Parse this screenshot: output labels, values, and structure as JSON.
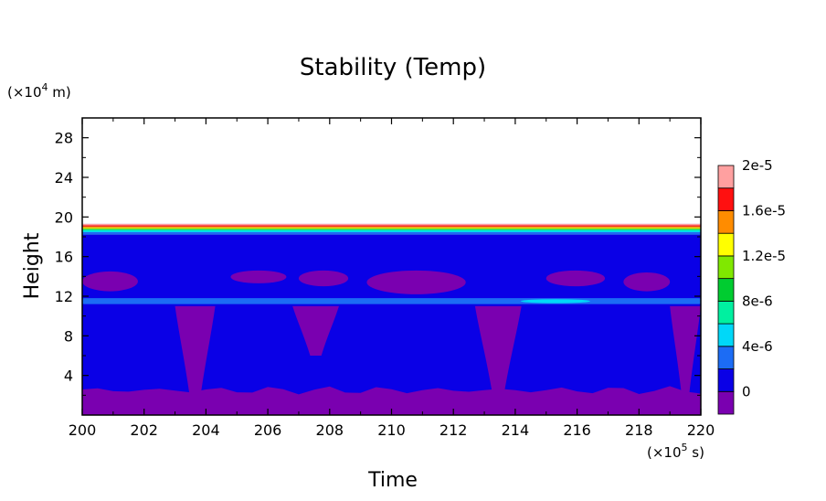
{
  "chart_data": {
    "type": "heatmap",
    "title": "Stability (Temp)",
    "xlabel": "Time",
    "ylabel": "Height",
    "x_unit_note": {
      "prefix": "(×10",
      "exp": "5",
      "suffix": " s)"
    },
    "y_unit_note": {
      "prefix": "(×10",
      "exp": "4",
      "suffix": " m)"
    },
    "xlim": [
      200,
      220
    ],
    "ylim": [
      0,
      30
    ],
    "x_ticks": [
      "200",
      "202",
      "204",
      "206",
      "208",
      "210",
      "212",
      "214",
      "216",
      "218",
      "220"
    ],
    "y_ticks": [
      "4",
      "8",
      "12",
      "16",
      "20",
      "24",
      "28"
    ],
    "grid": false,
    "colorbar": {
      "placement": "right",
      "levels": [
        "0",
        "4e-6",
        "8e-6",
        "1.2e-5",
        "1.6e-5",
        "2e-5"
      ],
      "colors": [
        "#7a00b0",
        "#0a00e6",
        "#1c6cf5",
        "#00d8f8",
        "#00f0a0",
        "#00cc30",
        "#80e800",
        "#ffff00",
        "#ff8c00",
        "#ff1010",
        "#ffa0a0"
      ]
    },
    "regions": [
      {
        "name": "neutral-band",
        "level": "0 to 4e-6",
        "y": [
          1.5,
          18.5
        ]
      },
      {
        "name": "surface-layer",
        "level": "below 0",
        "y": [
          0,
          2.5
        ]
      },
      {
        "name": "stable-layer-12km",
        "level": "4e-6 to 8e-6",
        "y": [
          11.2,
          11.8
        ]
      },
      {
        "name": "tropopause-gradient",
        "level": "4e-6 to 2e-5",
        "y": [
          18.5,
          19.3
        ]
      },
      {
        "name": "above-top",
        "level": "undefined",
        "y": [
          19.3,
          30
        ]
      }
    ],
    "plumes": [
      {
        "x": [
          203.0,
          204.3
        ],
        "y": [
          1.5,
          11.0
        ]
      },
      {
        "x": [
          206.8,
          208.3
        ],
        "y": [
          6.0,
          11.0
        ]
      },
      {
        "x": [
          212.7,
          214.2
        ],
        "y": [
          2.0,
          11.0
        ]
      },
      {
        "x": [
          219.0,
          220.0
        ],
        "y": [
          2.0,
          11.0
        ]
      }
    ],
    "patches_13km": [
      {
        "x": [
          200.0,
          201.8
        ],
        "y": [
          12.5,
          14.5
        ]
      },
      {
        "x": [
          204.8,
          206.6
        ],
        "y": [
          13.3,
          14.6
        ]
      },
      {
        "x": [
          207.0,
          208.6
        ],
        "y": [
          13.0,
          14.6
        ]
      },
      {
        "x": [
          209.2,
          212.4
        ],
        "y": [
          12.2,
          14.6
        ]
      },
      {
        "x": [
          215.0,
          216.9
        ],
        "y": [
          13.0,
          14.6
        ]
      },
      {
        "x": [
          217.5,
          219.0
        ],
        "y": [
          12.5,
          14.4
        ]
      }
    ]
  }
}
